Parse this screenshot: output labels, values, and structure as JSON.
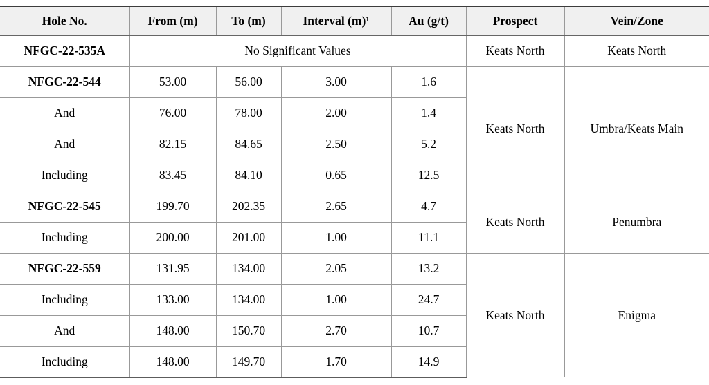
{
  "colors": {
    "header_bg": "#f0f0f0",
    "grid_line": "#999999",
    "strong_line": "#3c3c3c",
    "text": "#000000"
  },
  "header": {
    "hole": "Hole No.",
    "from": "From (m)",
    "to": "To (m)",
    "interval": "Interval (m)¹",
    "au": "Au (g/t)",
    "prospect": "Prospect",
    "vein": "Vein/Zone"
  },
  "groups": [
    {
      "prospect": "Keats North",
      "vein": "Keats North",
      "rows": [
        {
          "label": "NFGC-22-535A",
          "note": "No Significant Values"
        }
      ]
    },
    {
      "prospect": "Keats North",
      "vein": "Umbra/Keats Main",
      "rows": [
        {
          "label": "NFGC-22-544",
          "from": "53.00",
          "to": "56.00",
          "interval": "3.00",
          "au": "1.6"
        },
        {
          "label": "And",
          "from": "76.00",
          "to": "78.00",
          "interval": "2.00",
          "au": "1.4"
        },
        {
          "label": "And",
          "from": "82.15",
          "to": "84.65",
          "interval": "2.50",
          "au": "5.2"
        },
        {
          "label": "Including",
          "from": "83.45",
          "to": "84.10",
          "interval": "0.65",
          "au": "12.5"
        }
      ]
    },
    {
      "prospect": "Keats North",
      "vein": "Penumbra",
      "rows": [
        {
          "label": "NFGC-22-545",
          "from": "199.70",
          "to": "202.35",
          "interval": "2.65",
          "au": "4.7"
        },
        {
          "label": "Including",
          "from": "200.00",
          "to": "201.00",
          "interval": "1.00",
          "au": "11.1"
        }
      ]
    },
    {
      "prospect": "Keats North",
      "vein": "Enigma",
      "rows": [
        {
          "label": "NFGC-22-559",
          "from": "131.95",
          "to": "134.00",
          "interval": "2.05",
          "au": "13.2"
        },
        {
          "label": "Including",
          "from": "133.00",
          "to": "134.00",
          "interval": "1.00",
          "au": "24.7"
        },
        {
          "label": "And",
          "from": "148.00",
          "to": "150.70",
          "interval": "2.70",
          "au": "10.7"
        },
        {
          "label": "Including",
          "from": "148.00",
          "to": "149.70",
          "interval": "1.70",
          "au": "14.9"
        }
      ]
    }
  ]
}
